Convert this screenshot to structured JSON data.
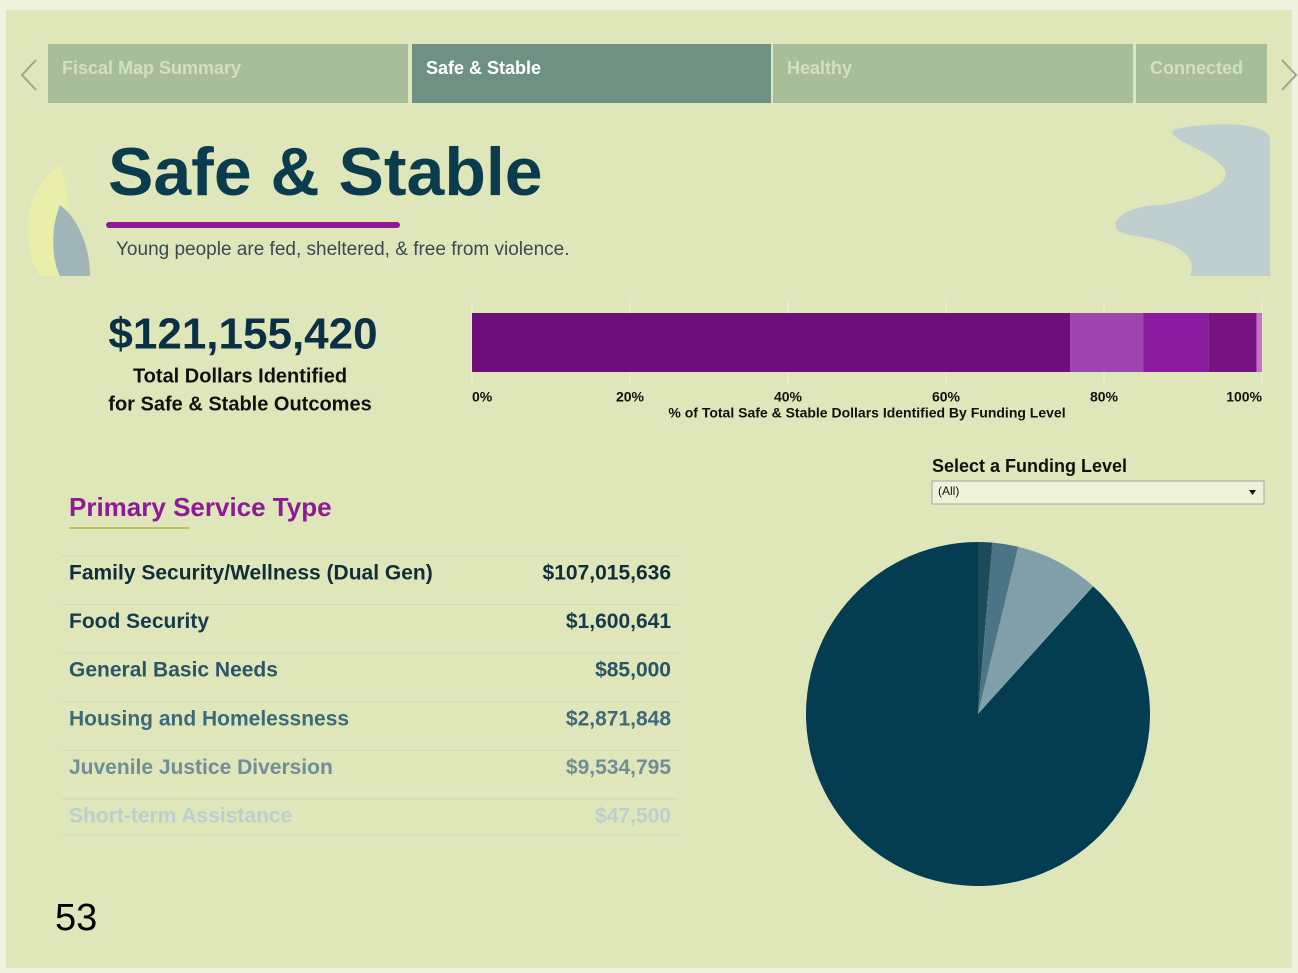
{
  "tabs": [
    "Fiscal Map Summary",
    "Safe & Stable",
    "Healthy",
    "Connected"
  ],
  "header": {
    "title": "Safe & Stable",
    "subtitle": "Young people are fed, sheltered, & free from violence."
  },
  "total": {
    "amount": "$121,155,420",
    "caption": [
      "Total Dollars Identified",
      "for Safe & Stable Outcomes"
    ]
  },
  "chart_data": {
    "type": "stacked-bar",
    "xlabel": "% of Total Safe & Stable Dollars Identified By Funding Level",
    "series": [
      {
        "color": "#6c0f7b",
        "values": [
          75.7
        ]
      },
      {
        "color": "#9d46ae",
        "values": [
          9.3
        ]
      },
      {
        "color": "#8a1a9f",
        "values": [
          8.2
        ]
      },
      {
        "color": "#781380",
        "values": [
          6.1
        ]
      },
      {
        "color": "#c372c4",
        "values": [
          0.7
        ]
      }
    ],
    "xlim": [
      0,
      100
    ],
    "xticks": [
      {
        "value": 0,
        "label": "0%"
      },
      {
        "value": 20,
        "label": "20%"
      },
      {
        "value": 40,
        "label": "40%"
      },
      {
        "value": 60,
        "label": "60%"
      },
      {
        "value": 80,
        "label": "80%"
      },
      {
        "value": 100,
        "label": "100%"
      }
    ]
  },
  "filter": {
    "label": "Select a Funding Level",
    "value": "(All)"
  },
  "table": {
    "title": "Primary Service Type",
    "rows": [
      {
        "name": "Family Security/Wellness (Dual Gen)",
        "value": 107015636,
        "value_label": "$107,015,636",
        "color": "#043d51"
      },
      {
        "name": "Food Security",
        "value": 1600641,
        "value_label": "$1,600,641",
        "color": "#1e4a5b"
      },
      {
        "name": "General Basic Needs",
        "value": 85000,
        "value_label": "$85,000",
        "color": "#2b5a6a"
      },
      {
        "name": "Housing and Homelessness",
        "value": 2871848,
        "value_label": "$2,871,848",
        "color": "#4b7486"
      },
      {
        "name": "Juvenile Justice Diversion",
        "value": 9534795,
        "value_label": "$9,534,795",
        "color": "#809fa9"
      },
      {
        "name": "Short-term Assistance",
        "value": 47500,
        "value_label": "$47,500",
        "color": "#a5bcc0"
      }
    ]
  },
  "page_number": "53"
}
